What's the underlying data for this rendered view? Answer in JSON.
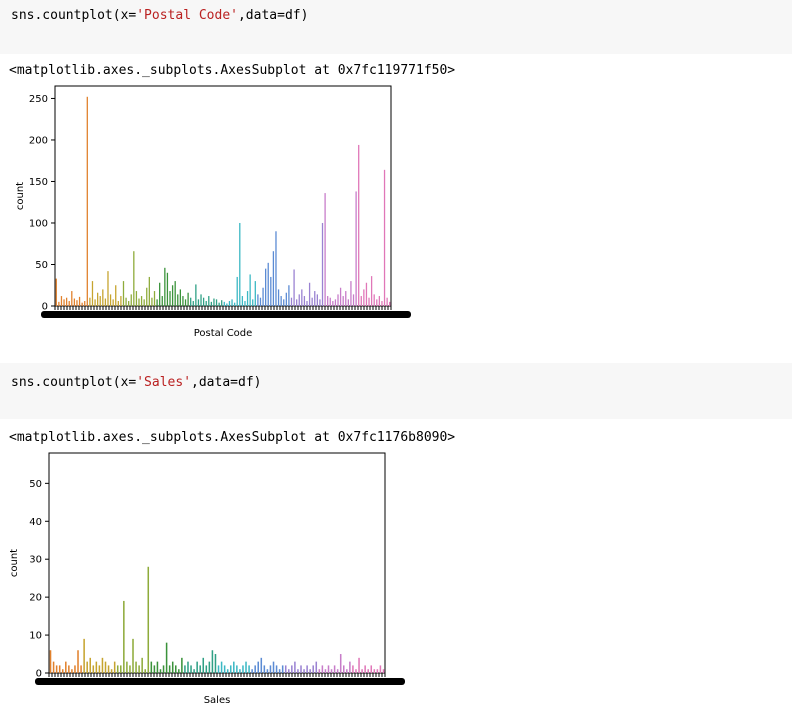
{
  "cells": [
    {
      "code": {
        "fn": "sns.countplot(x=",
        "arg": "'Postal Code'",
        "rest": ",data=df)"
      },
      "output": "<matplotlib.axes._subplots.AxesSubplot at 0x7fc119771f50>"
    },
    {
      "code": {
        "fn": "sns.countplot(x=",
        "arg": "'Sales'",
        "rest": ",data=df)"
      },
      "output": "<matplotlib.axes._subplots.AxesSubplot at 0x7fc1176b8090>"
    }
  ],
  "chart_data": [
    {
      "type": "bar",
      "xlabel": "Postal Code",
      "ylabel": "count",
      "ylim": [
        0,
        265
      ],
      "yticks": [
        0,
        50,
        100,
        150,
        200,
        250
      ],
      "grid": false,
      "palette": [
        "#e1812c",
        "#c6a42f",
        "#8eab3a",
        "#3a923a",
        "#2fa085",
        "#3bb8c4",
        "#5b8bd4",
        "#9a82d2",
        "#c77cc9",
        "#e077b8"
      ],
      "values": [
        33,
        5,
        12,
        8,
        10,
        6,
        18,
        9,
        7,
        11,
        4,
        6,
        252,
        10,
        30,
        8,
        16,
        12,
        20,
        9,
        42,
        14,
        8,
        25,
        6,
        12,
        30,
        10,
        6,
        14,
        66,
        18,
        9,
        12,
        8,
        22,
        35,
        10,
        18,
        8,
        28,
        12,
        46,
        40,
        18,
        25,
        30,
        14,
        20,
        12,
        8,
        16,
        10,
        6,
        26,
        8,
        14,
        10,
        6,
        12,
        5,
        9,
        8,
        4,
        7,
        5,
        3,
        6,
        8,
        4,
        35,
        100,
        12,
        6,
        18,
        38,
        8,
        30,
        14,
        10,
        22,
        45,
        52,
        35,
        66,
        90,
        20,
        12,
        8,
        16,
        25,
        10,
        44,
        8,
        14,
        20,
        12,
        6,
        28,
        10,
        18,
        14,
        8,
        100,
        136,
        12,
        10,
        6,
        8,
        14,
        22,
        12,
        18,
        8,
        30,
        14,
        138,
        194,
        12,
        20,
        28,
        10,
        36,
        14,
        8,
        12,
        6,
        164,
        10,
        5
      ]
    },
    {
      "type": "bar",
      "xlabel": "Sales",
      "ylabel": "count",
      "ylim": [
        0,
        58
      ],
      "yticks": [
        0,
        10,
        20,
        30,
        40,
        50
      ],
      "grid": false,
      "palette": [
        "#e1812c",
        "#c6a42f",
        "#8eab3a",
        "#3a923a",
        "#2fa085",
        "#3bb8c4",
        "#5b8bd4",
        "#9a82d2",
        "#c77cc9",
        "#e077b8"
      ],
      "values": [
        6,
        3,
        2,
        2,
        1,
        3,
        2,
        1,
        2,
        6,
        2,
        9,
        3,
        4,
        2,
        3,
        2,
        4,
        3,
        2,
        1,
        3,
        2,
        2,
        19,
        3,
        2,
        9,
        3,
        2,
        4,
        1,
        28,
        3,
        2,
        3,
        1,
        2,
        8,
        2,
        3,
        2,
        1,
        4,
        2,
        3,
        2,
        1,
        3,
        2,
        4,
        2,
        3,
        6,
        5,
        2,
        3,
        2,
        1,
        2,
        3,
        2,
        1,
        2,
        3,
        2,
        1,
        2,
        3,
        4,
        2,
        1,
        2,
        3,
        2,
        1,
        2,
        2,
        1,
        2,
        3,
        1,
        2,
        1,
        2,
        1,
        2,
        3,
        1,
        2,
        1,
        2,
        1,
        2,
        1,
        5,
        2,
        1,
        3,
        2,
        1,
        4,
        1,
        2,
        1,
        2,
        1,
        1,
        2,
        1
      ]
    }
  ]
}
